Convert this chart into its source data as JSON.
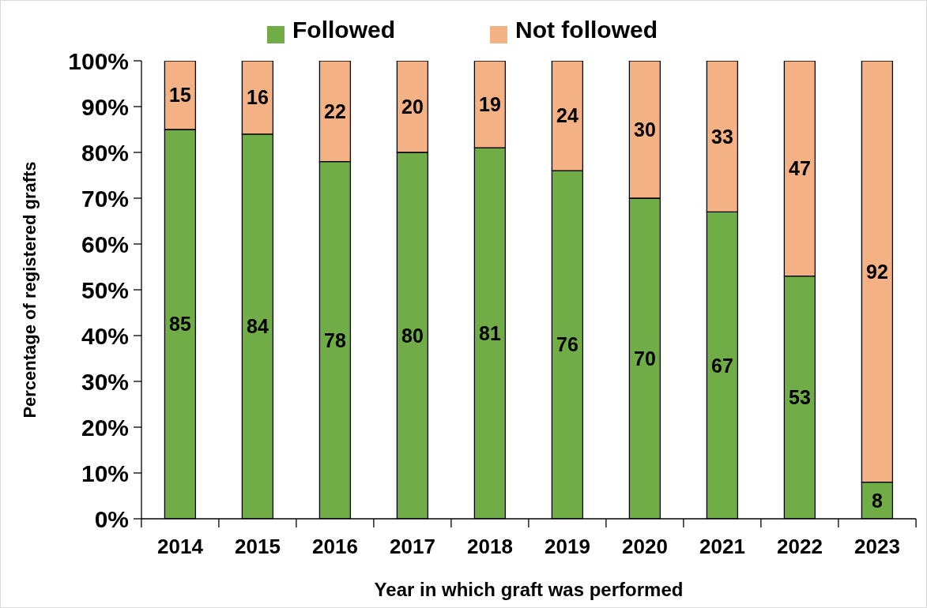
{
  "chart_data": {
    "type": "bar",
    "stacked": true,
    "categories": [
      "2014",
      "2015",
      "2016",
      "2017",
      "2018",
      "2019",
      "2020",
      "2021",
      "2022",
      "2023"
    ],
    "series": [
      {
        "name": "Followed",
        "color": "#70ad47",
        "values": [
          85,
          84,
          78,
          80,
          81,
          76,
          70,
          67,
          53,
          8
        ]
      },
      {
        "name": "Not followed",
        "color": "#f4b183",
        "values": [
          15,
          16,
          22,
          20,
          19,
          24,
          30,
          33,
          47,
          92
        ]
      }
    ],
    "xlabel": "Year in which graft was performed",
    "ylabel": "Percentage of registered grafts",
    "ylim": [
      0,
      100
    ],
    "yticks": [
      {
        "value": 0,
        "label": "0%"
      },
      {
        "value": 10,
        "label": "10%"
      },
      {
        "value": 20,
        "label": "20%"
      },
      {
        "value": 30,
        "label": "30%"
      },
      {
        "value": 40,
        "label": "40%"
      },
      {
        "value": 50,
        "label": "50%"
      },
      {
        "value": 60,
        "label": "60%"
      },
      {
        "value": 70,
        "label": "70%"
      },
      {
        "value": 80,
        "label": "80%"
      },
      {
        "value": 90,
        "label": "90%"
      },
      {
        "value": 100,
        "label": "100%"
      }
    ],
    "legend": "top",
    "data_labels": true
  }
}
